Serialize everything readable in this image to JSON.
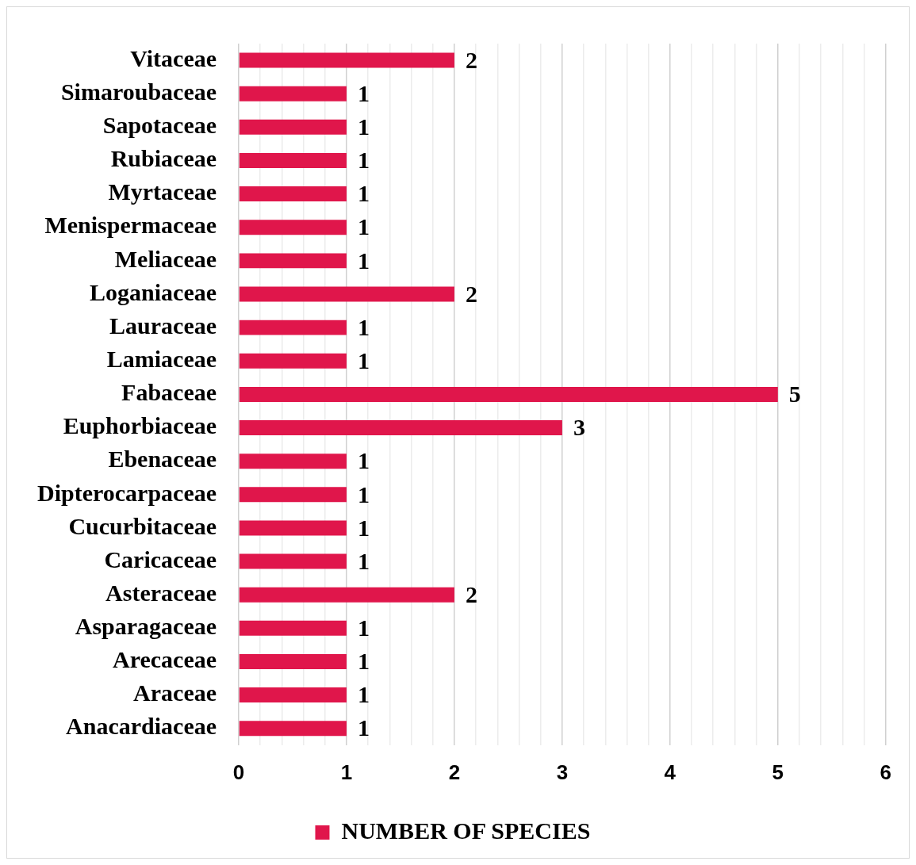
{
  "chart_data": {
    "type": "bar",
    "orientation": "horizontal",
    "categories": [
      "Vitaceae",
      "Simaroubaceae",
      "Sapotaceae",
      "Rubiaceae",
      "Myrtaceae",
      "Menispermaceae",
      "Meliaceae",
      "Loganiaceae",
      "Lauraceae",
      "Lamiaceae",
      "Fabaceae",
      "Euphorbiaceae",
      "Ebenaceae",
      "Dipterocarpaceae",
      "Cucurbitaceae",
      "Caricaceae",
      "Asteraceae",
      "Asparagaceae",
      "Arecaceae",
      "Araceae",
      "Anacardiaceae"
    ],
    "series": [
      {
        "name": "NUMBER OF SPECIES",
        "color": "#e0164b",
        "values": [
          2,
          1,
          1,
          1,
          1,
          1,
          1,
          2,
          1,
          1,
          5,
          3,
          1,
          1,
          1,
          1,
          2,
          1,
          1,
          1,
          1
        ]
      }
    ],
    "xlim": [
      0,
      6
    ],
    "xticks": [
      0,
      {
        "value": 0.2,
        "label": null
      },
      {
        "value": 0.4,
        "label": null
      },
      {
        "value": 0.6,
        "label": null
      },
      {
        "value": 0.8,
        "label": null
      },
      1,
      {
        "value": 1.2,
        "label": null
      },
      {
        "value": 1.4,
        "label": null
      },
      {
        "value": 1.6,
        "label": null
      },
      {
        "value": 1.8,
        "label": null
      },
      2,
      {
        "value": 2.2,
        "label": null
      },
      {
        "value": 2.4,
        "label": null
      },
      {
        "value": 2.6,
        "label": null
      },
      {
        "value": 2.8,
        "label": null
      },
      3,
      {
        "value": 3.2,
        "label": null
      },
      {
        "value": 3.4,
        "label": null
      },
      {
        "value": 3.6,
        "label": null
      },
      {
        "value": 3.8,
        "label": null
      },
      4,
      {
        "value": 4.2,
        "label": null
      },
      {
        "value": 4.4,
        "label": null
      },
      {
        "value": 4.6,
        "label": null
      },
      {
        "value": 4.8,
        "label": null
      },
      5,
      {
        "value": 5.2,
        "label": null
      },
      {
        "value": 5.4,
        "label": null
      },
      {
        "value": 5.6,
        "label": null
      },
      {
        "value": 5.8,
        "label": null
      },
      6
    ],
    "grid": "x",
    "legend": "bottom",
    "data_labels": true
  }
}
